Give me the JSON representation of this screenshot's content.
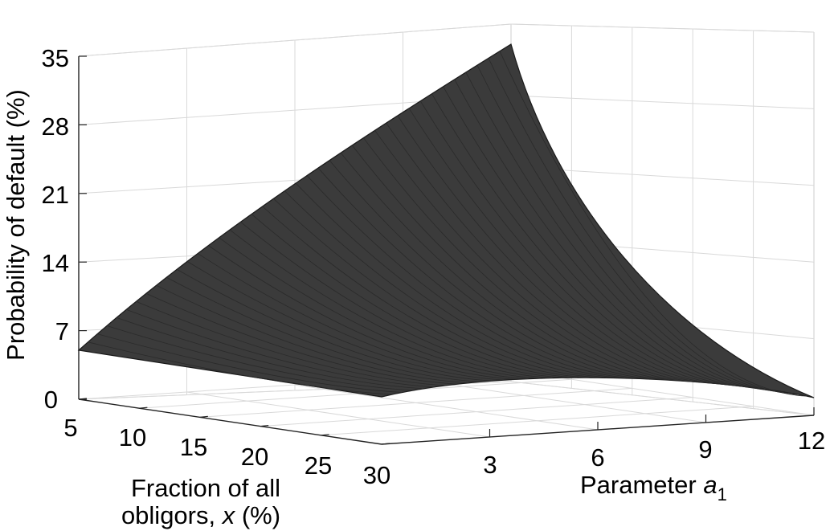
{
  "chart_data": {
    "type": "surface",
    "title": "",
    "xlabel_line1": "Fraction of all",
    "xlabel_line2_prefix": "obligors, ",
    "xlabel_var": "x",
    "xlabel_unit": " (%)",
    "ylabel_prefix": "Parameter ",
    "ylabel_var": "a",
    "ylabel_sub": "1",
    "zlabel": "Probability of default  (%)",
    "x_ticks": [
      "5",
      "10",
      "15",
      "20",
      "25",
      "30"
    ],
    "y_ticks": [
      "3",
      "6",
      "9",
      "12"
    ],
    "z_ticks": [
      "0",
      "7",
      "14",
      "21",
      "28",
      "35"
    ],
    "xlim": [
      5,
      30
    ],
    "ylim": [
      0,
      12
    ],
    "zlim": [
      0,
      35
    ],
    "grid": true,
    "surface_color": "#3a3a3a",
    "grid_color": "#d9d9d9",
    "corner_values": [
      {
        "x": 5,
        "a1": 0,
        "pd": 5
      },
      {
        "x": 30,
        "a1": 0,
        "pd": 0
      },
      {
        "x": 5,
        "a1": 12,
        "pd": 35
      },
      {
        "x": 30,
        "a1": 12,
        "pd": 0
      }
    ]
  }
}
